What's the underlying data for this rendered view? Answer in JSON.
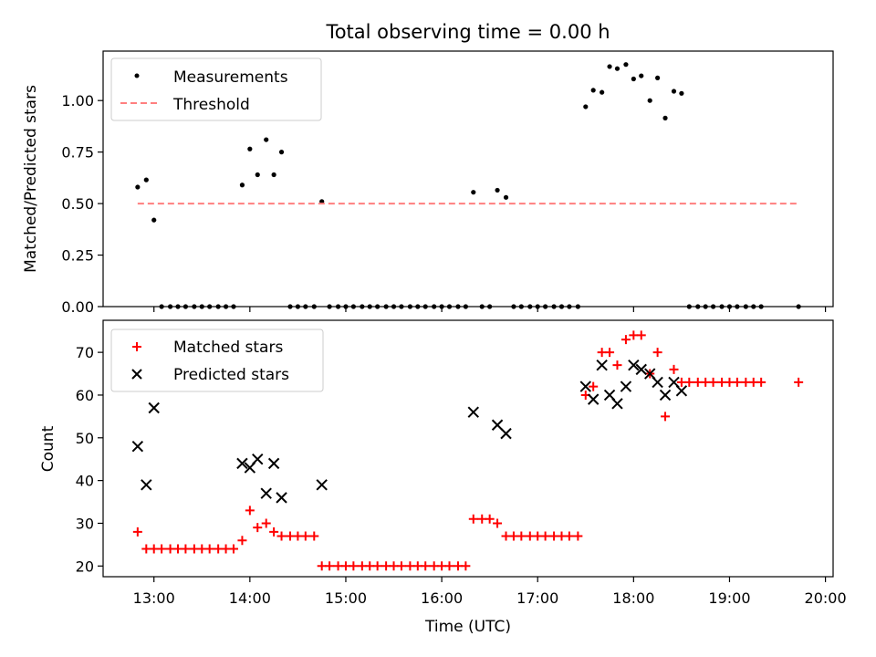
{
  "chart_data": [
    {
      "type": "scatter",
      "title": "Total observing time = 0.00 h",
      "xlabel": "",
      "ylabel": "Matched/Predicted stars",
      "xlim": [
        12.47,
        20.08
      ],
      "ylim": [
        0.0,
        1.24
      ],
      "yticks": [
        0.0,
        0.25,
        0.5,
        0.75,
        1.0
      ],
      "ytick_labels": [
        "0.00",
        "0.25",
        "0.50",
        "0.75",
        "1.00"
      ],
      "legend": [
        "Measurements",
        "Threshold"
      ],
      "legend_position": "top-left",
      "series": [
        {
          "name": "Measurements",
          "color": "#000000",
          "marker": "dot",
          "points": [
            [
              12.83,
              0.58
            ],
            [
              12.92,
              0.615
            ],
            [
              13.0,
              0.42
            ],
            [
              13.08,
              0.0
            ],
            [
              13.17,
              0.0
            ],
            [
              13.25,
              0.0
            ],
            [
              13.33,
              0.0
            ],
            [
              13.42,
              0.0
            ],
            [
              13.5,
              0.0
            ],
            [
              13.58,
              0.0
            ],
            [
              13.67,
              0.0
            ],
            [
              13.75,
              0.0
            ],
            [
              13.83,
              0.0
            ],
            [
              13.92,
              0.59
            ],
            [
              14.0,
              0.765
            ],
            [
              14.08,
              0.64
            ],
            [
              14.17,
              0.81
            ],
            [
              14.25,
              0.64
            ],
            [
              14.33,
              0.75
            ],
            [
              14.42,
              0.0
            ],
            [
              14.5,
              0.0
            ],
            [
              14.58,
              0.0
            ],
            [
              14.67,
              0.0
            ],
            [
              14.75,
              0.51
            ],
            [
              14.83,
              0.0
            ],
            [
              14.92,
              0.0
            ],
            [
              15.0,
              0.0
            ],
            [
              15.08,
              0.0
            ],
            [
              15.17,
              0.0
            ],
            [
              15.25,
              0.0
            ],
            [
              15.33,
              0.0
            ],
            [
              15.42,
              0.0
            ],
            [
              15.5,
              0.0
            ],
            [
              15.58,
              0.0
            ],
            [
              15.67,
              0.0
            ],
            [
              15.75,
              0.0
            ],
            [
              15.83,
              0.0
            ],
            [
              15.92,
              0.0
            ],
            [
              16.0,
              0.0
            ],
            [
              16.08,
              0.0
            ],
            [
              16.17,
              0.0
            ],
            [
              16.25,
              0.0
            ],
            [
              16.33,
              0.555
            ],
            [
              16.42,
              0.0
            ],
            [
              16.5,
              0.0
            ],
            [
              16.58,
              0.565
            ],
            [
              16.67,
              0.53
            ],
            [
              16.75,
              0.0
            ],
            [
              16.83,
              0.0
            ],
            [
              16.92,
              0.0
            ],
            [
              17.0,
              0.0
            ],
            [
              17.08,
              0.0
            ],
            [
              17.17,
              0.0
            ],
            [
              17.25,
              0.0
            ],
            [
              17.33,
              0.0
            ],
            [
              17.42,
              0.0
            ],
            [
              17.5,
              0.97
            ],
            [
              17.58,
              1.05
            ],
            [
              17.67,
              1.04
            ],
            [
              17.75,
              1.165
            ],
            [
              17.83,
              1.155
            ],
            [
              17.92,
              1.175
            ],
            [
              18.0,
              1.105
            ],
            [
              18.08,
              1.12
            ],
            [
              18.17,
              1.0
            ],
            [
              18.25,
              1.11
            ],
            [
              18.33,
              0.915
            ],
            [
              18.42,
              1.045
            ],
            [
              18.5,
              1.035
            ],
            [
              18.58,
              0.0
            ],
            [
              18.67,
              0.0
            ],
            [
              18.75,
              0.0
            ],
            [
              18.83,
              0.0
            ],
            [
              18.92,
              0.0
            ],
            [
              19.0,
              0.0
            ],
            [
              19.08,
              0.0
            ],
            [
              19.17,
              0.0
            ],
            [
              19.25,
              0.0
            ],
            [
              19.33,
              0.0
            ],
            [
              19.72,
              0.0
            ]
          ]
        },
        {
          "name": "Threshold",
          "color": "#ff7f7f",
          "style": "dashed",
          "points": [
            [
              12.83,
              0.5
            ],
            [
              19.72,
              0.5
            ]
          ]
        }
      ]
    },
    {
      "type": "scatter",
      "title": "",
      "xlabel": "Time (UTC)",
      "ylabel": "Count",
      "xlim": [
        12.47,
        20.08
      ],
      "ylim": [
        17.5,
        77.5
      ],
      "yticks": [
        20,
        30,
        40,
        50,
        60,
        70
      ],
      "ytick_labels": [
        "20",
        "30",
        "40",
        "50",
        "60",
        "70"
      ],
      "xticks": [
        13,
        14,
        15,
        16,
        17,
        18,
        19,
        20
      ],
      "xtick_labels": [
        "13:00",
        "14:00",
        "15:00",
        "16:00",
        "17:00",
        "18:00",
        "19:00",
        "20:00"
      ],
      "legend": [
        "Matched stars",
        "Predicted stars"
      ],
      "legend_position": "top-left",
      "series": [
        {
          "name": "Matched stars",
          "color": "#ff0000",
          "marker": "plus",
          "points": [
            [
              12.83,
              28
            ],
            [
              12.92,
              24
            ],
            [
              13.0,
              24
            ],
            [
              13.08,
              24
            ],
            [
              13.17,
              24
            ],
            [
              13.25,
              24
            ],
            [
              13.33,
              24
            ],
            [
              13.42,
              24
            ],
            [
              13.5,
              24
            ],
            [
              13.58,
              24
            ],
            [
              13.67,
              24
            ],
            [
              13.75,
              24
            ],
            [
              13.83,
              24
            ],
            [
              13.92,
              26
            ],
            [
              14.0,
              33
            ],
            [
              14.08,
              29
            ],
            [
              14.17,
              30
            ],
            [
              14.25,
              28
            ],
            [
              14.33,
              27
            ],
            [
              14.42,
              27
            ],
            [
              14.5,
              27
            ],
            [
              14.58,
              27
            ],
            [
              14.67,
              27
            ],
            [
              14.75,
              20
            ],
            [
              14.83,
              20
            ],
            [
              14.92,
              20
            ],
            [
              15.0,
              20
            ],
            [
              15.08,
              20
            ],
            [
              15.17,
              20
            ],
            [
              15.25,
              20
            ],
            [
              15.33,
              20
            ],
            [
              15.42,
              20
            ],
            [
              15.5,
              20
            ],
            [
              15.58,
              20
            ],
            [
              15.67,
              20
            ],
            [
              15.75,
              20
            ],
            [
              15.83,
              20
            ],
            [
              15.92,
              20
            ],
            [
              16.0,
              20
            ],
            [
              16.08,
              20
            ],
            [
              16.17,
              20
            ],
            [
              16.25,
              20
            ],
            [
              16.33,
              31
            ],
            [
              16.42,
              31
            ],
            [
              16.5,
              31
            ],
            [
              16.58,
              30
            ],
            [
              16.67,
              27
            ],
            [
              16.75,
              27
            ],
            [
              16.83,
              27
            ],
            [
              16.92,
              27
            ],
            [
              17.0,
              27
            ],
            [
              17.08,
              27
            ],
            [
              17.17,
              27
            ],
            [
              17.25,
              27
            ],
            [
              17.33,
              27
            ],
            [
              17.42,
              27
            ],
            [
              17.5,
              60
            ],
            [
              17.58,
              62
            ],
            [
              17.67,
              70
            ],
            [
              17.75,
              70
            ],
            [
              17.83,
              67
            ],
            [
              17.92,
              73
            ],
            [
              18.0,
              74
            ],
            [
              18.08,
              74
            ],
            [
              18.17,
              65
            ],
            [
              18.25,
              70
            ],
            [
              18.33,
              55
            ],
            [
              18.42,
              66
            ],
            [
              18.5,
              63
            ],
            [
              18.58,
              63
            ],
            [
              18.67,
              63
            ],
            [
              18.75,
              63
            ],
            [
              18.83,
              63
            ],
            [
              18.92,
              63
            ],
            [
              19.0,
              63
            ],
            [
              19.08,
              63
            ],
            [
              19.17,
              63
            ],
            [
              19.25,
              63
            ],
            [
              19.33,
              63
            ],
            [
              19.72,
              63
            ]
          ]
        },
        {
          "name": "Predicted stars",
          "color": "#000000",
          "marker": "x",
          "points": [
            [
              12.83,
              48
            ],
            [
              12.92,
              39
            ],
            [
              13.0,
              57
            ],
            [
              13.92,
              44
            ],
            [
              14.0,
              43
            ],
            [
              14.08,
              45
            ],
            [
              14.17,
              37
            ],
            [
              14.25,
              44
            ],
            [
              14.33,
              36
            ],
            [
              14.75,
              39
            ],
            [
              16.33,
              56
            ],
            [
              16.58,
              53
            ],
            [
              16.67,
              51
            ],
            [
              17.5,
              62
            ],
            [
              17.58,
              59
            ],
            [
              17.67,
              67
            ],
            [
              17.75,
              60
            ],
            [
              17.83,
              58
            ],
            [
              17.92,
              62
            ],
            [
              18.0,
              67
            ],
            [
              18.08,
              66
            ],
            [
              18.17,
              65
            ],
            [
              18.25,
              63
            ],
            [
              18.33,
              60
            ],
            [
              18.42,
              63
            ],
            [
              18.5,
              61
            ]
          ]
        }
      ]
    }
  ]
}
